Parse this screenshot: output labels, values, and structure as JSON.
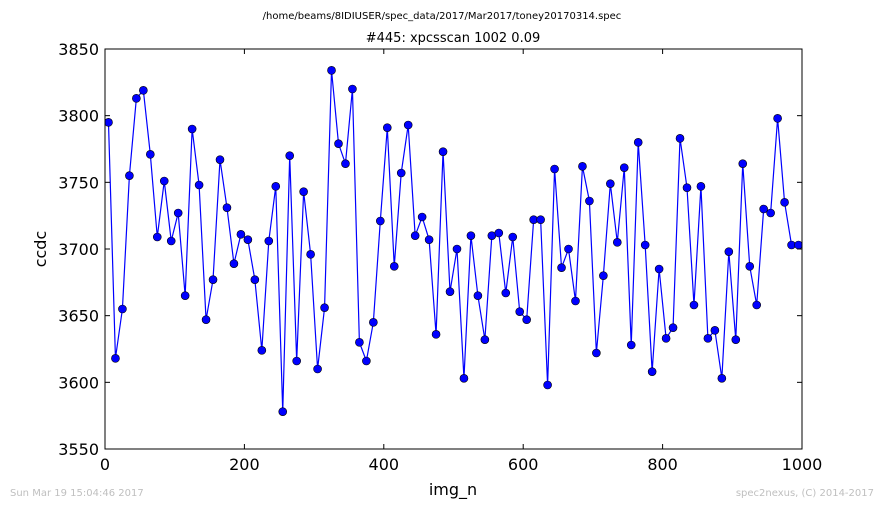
{
  "suptitle": "/home/beams/8IDIUSER/spec_data/2017/Mar2017/toney20170314.spec",
  "footer": {
    "timestamp": "Sun Mar 19 15:04:46 2017",
    "credit": "spec2nexus, (C) 2014-2017"
  },
  "colors": {
    "series": "#0000ff",
    "axes": "#000000",
    "footer": "#bfbfbf"
  },
  "chart_data": {
    "type": "line",
    "title": "#445: xpcsscan 1002 0.09",
    "xlabel": "img_n",
    "ylabel": "ccdc",
    "xlim": [
      0,
      1000
    ],
    "ylim": [
      3550,
      3850
    ],
    "xticks": [
      0,
      200,
      400,
      600,
      800,
      1000
    ],
    "yticks": [
      3550,
      3600,
      3650,
      3700,
      3750,
      3800,
      3850
    ],
    "grid": false,
    "marker": "circle",
    "series": [
      {
        "x": [
          5,
          15,
          25,
          35,
          45,
          55,
          65,
          75,
          85,
          95,
          105,
          115,
          125,
          135,
          145,
          155,
          165,
          175,
          185,
          195,
          205,
          215,
          225,
          235,
          245,
          255,
          265,
          275,
          285,
          295,
          305,
          315,
          325,
          335,
          345,
          355,
          365,
          375,
          385,
          395,
          405,
          415,
          425,
          435,
          445,
          455,
          465,
          475,
          485,
          495,
          505,
          515,
          525,
          535,
          545,
          555,
          565,
          575,
          585,
          595,
          605,
          615,
          625,
          635,
          645,
          655,
          665,
          675,
          685,
          695,
          705,
          715,
          725,
          735,
          745,
          755,
          765,
          775,
          785,
          795,
          805,
          815,
          825,
          835,
          845,
          855,
          865,
          875,
          885,
          895,
          905,
          915,
          925,
          935,
          945,
          955,
          965,
          975,
          985,
          995
        ],
        "y": [
          3795,
          3618,
          3655,
          3755,
          3813,
          3819,
          3771,
          3709,
          3751,
          3706,
          3727,
          3665,
          3790,
          3748,
          3647,
          3677,
          3767,
          3731,
          3689,
          3711,
          3707,
          3677,
          3624,
          3706,
          3747,
          3578,
          3770,
          3616,
          3743,
          3696,
          3610,
          3656,
          3834,
          3779,
          3764,
          3820,
          3630,
          3616,
          3645,
          3721,
          3791,
          3687,
          3757,
          3793,
          3710,
          3724,
          3707,
          3636,
          3773,
          3668,
          3700,
          3603,
          3710,
          3665,
          3632,
          3710,
          3712,
          3667,
          3709,
          3653,
          3647,
          3722,
          3722,
          3598,
          3760,
          3686,
          3700,
          3661,
          3762,
          3736,
          3622,
          3680,
          3749,
          3705,
          3761,
          3628,
          3780,
          3703,
          3608,
          3685,
          3633,
          3641,
          3783,
          3746,
          3658,
          3747,
          3633,
          3639,
          3603,
          3698,
          3632,
          3764,
          3687,
          3658,
          3730,
          3727,
          3798,
          3735,
          3703,
          3703
        ]
      }
    ]
  }
}
